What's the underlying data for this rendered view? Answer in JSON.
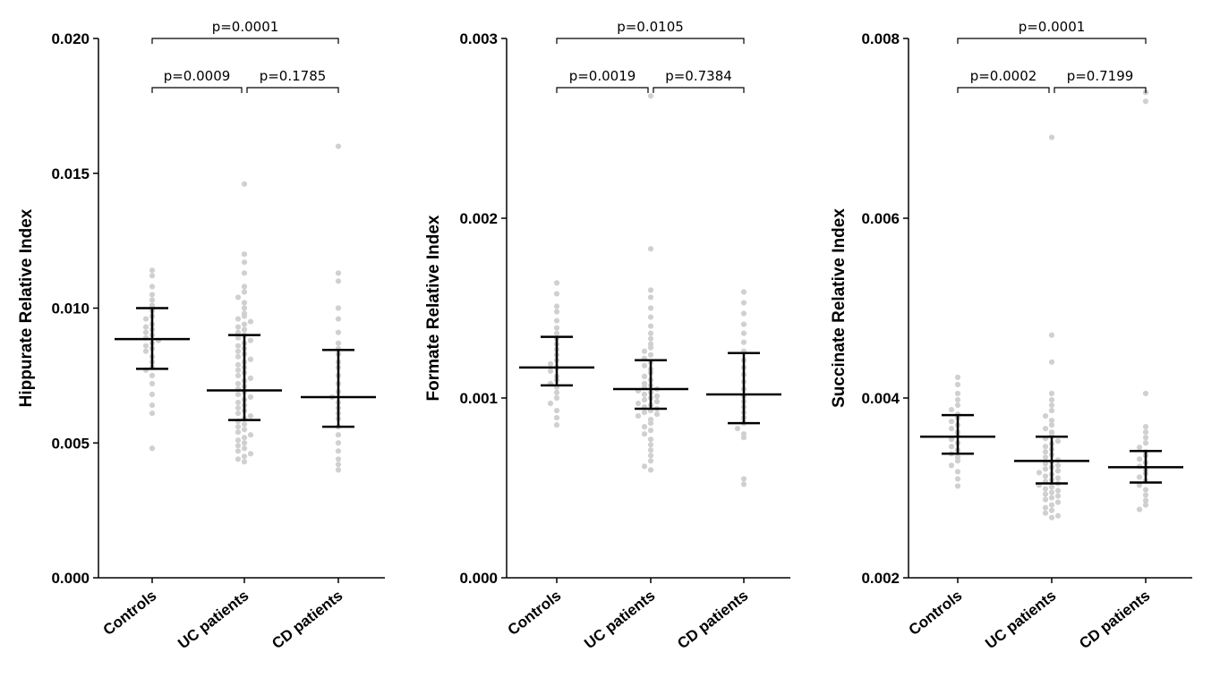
{
  "chart_data": [
    {
      "type": "scatter",
      "ylabel": "Hippurate Relative Index",
      "ylim": [
        0.0,
        0.02
      ],
      "yticks": [
        "0.000",
        "0.005",
        "0.010",
        "0.015",
        "0.020"
      ],
      "categories": [
        "Controls",
        "UC patients",
        "CD patients"
      ],
      "groups": [
        {
          "name": "Controls",
          "mean": 0.00885,
          "lower": 0.00775,
          "upper": 0.01,
          "points": [
            0.0114,
            0.0112,
            0.0108,
            0.0105,
            0.0103,
            0.0101,
            0.0099,
            0.0097,
            0.0096,
            0.0094,
            0.0093,
            0.0092,
            0.0091,
            0.009,
            0.0089,
            0.0088,
            0.0087,
            0.0086,
            0.0085,
            0.0084,
            0.0082,
            0.008,
            0.0078,
            0.0077,
            0.0075,
            0.0072,
            0.0068,
            0.0064,
            0.0061,
            0.0048
          ]
        },
        {
          "name": "UC patients",
          "mean": 0.00695,
          "lower": 0.00585,
          "upper": 0.009,
          "points": [
            0.0146,
            0.012,
            0.0117,
            0.0113,
            0.0108,
            0.0106,
            0.0104,
            0.0102,
            0.01,
            0.0098,
            0.0097,
            0.0096,
            0.0095,
            0.0094,
            0.0093,
            0.0092,
            0.0091,
            0.009,
            0.0089,
            0.0088,
            0.0087,
            0.0086,
            0.0085,
            0.0084,
            0.0083,
            0.0082,
            0.0081,
            0.008,
            0.0079,
            0.0078,
            0.0077,
            0.0076,
            0.0075,
            0.0074,
            0.0073,
            0.0072,
            0.0071,
            0.007,
            0.0069,
            0.0068,
            0.0067,
            0.0066,
            0.0065,
            0.0064,
            0.0063,
            0.0062,
            0.0061,
            0.006,
            0.0059,
            0.0058,
            0.0057,
            0.0056,
            0.0055,
            0.0054,
            0.0053,
            0.0052,
            0.0051,
            0.005,
            0.0049,
            0.0048,
            0.0047,
            0.0046,
            0.0045,
            0.0044,
            0.0043
          ]
        },
        {
          "name": "CD patients",
          "mean": 0.0067,
          "lower": 0.0056,
          "upper": 0.00845,
          "points": [
            0.016,
            0.0113,
            0.011,
            0.01,
            0.0096,
            0.0091,
            0.0087,
            0.0085,
            0.0083,
            0.008,
            0.0078,
            0.0075,
            0.0072,
            0.0069,
            0.0067,
            0.0065,
            0.0063,
            0.0061,
            0.0059,
            0.0056,
            0.0053,
            0.005,
            0.0047,
            0.0044,
            0.0042,
            0.004
          ]
        }
      ],
      "comparisons": [
        {
          "from": 0,
          "to": 2,
          "label": "p=0.0001",
          "level": 2
        },
        {
          "from": 0,
          "to": 1,
          "label": "p=0.0009",
          "level": 1
        },
        {
          "from": 1,
          "to": 2,
          "label": "p=0.1785",
          "level": 1
        }
      ]
    },
    {
      "type": "scatter",
      "ylabel": "Formate Relative Index",
      "ylim": [
        0.0,
        0.003
      ],
      "yticks": [
        "0.000",
        "0.001",
        "0.002",
        "0.003"
      ],
      "categories": [
        "Controls",
        "UC patients",
        "CD patients"
      ],
      "groups": [
        {
          "name": "Controls",
          "mean": 0.00117,
          "lower": 0.00107,
          "upper": 0.00134,
          "points": [
            0.00164,
            0.00158,
            0.00151,
            0.00148,
            0.00143,
            0.00139,
            0.00136,
            0.00133,
            0.0013,
            0.00127,
            0.00124,
            0.00121,
            0.00119,
            0.00117,
            0.00115,
            0.00112,
            0.0011,
            0.00108,
            0.00106,
            0.00103,
            0.001,
            0.00097,
            0.00093,
            0.00089,
            0.00085
          ]
        },
        {
          "name": "UC patients",
          "mean": 0.00105,
          "lower": 0.00094,
          "upper": 0.00121,
          "points": [
            0.00268,
            0.00183,
            0.0016,
            0.00156,
            0.0015,
            0.00145,
            0.0014,
            0.00136,
            0.00133,
            0.0013,
            0.00128,
            0.00126,
            0.00124,
            0.00122,
            0.0012,
            0.00118,
            0.00116,
            0.00114,
            0.00112,
            0.0011,
            0.00108,
            0.00107,
            0.00106,
            0.00105,
            0.00104,
            0.00103,
            0.00102,
            0.00101,
            0.001,
            0.00099,
            0.00098,
            0.00097,
            0.00096,
            0.00095,
            0.00094,
            0.00093,
            0.00092,
            0.00091,
            0.0009,
            0.00088,
            0.00086,
            0.00084,
            0.00082,
            0.0008,
            0.00077,
            0.00074,
            0.00071,
            0.00068,
            0.00065,
            0.00062,
            0.0006
          ]
        },
        {
          "name": "CD patients",
          "mean": 0.00102,
          "lower": 0.00086,
          "upper": 0.00125,
          "points": [
            0.00159,
            0.00153,
            0.00147,
            0.00141,
            0.00136,
            0.00131,
            0.00126,
            0.00121,
            0.00117,
            0.00113,
            0.00109,
            0.00105,
            0.00101,
            0.00098,
            0.00095,
            0.00092,
            0.00089,
            0.00086,
            0.00083,
            0.0008,
            0.00078,
            0.00055,
            0.00052
          ]
        }
      ],
      "comparisons": [
        {
          "from": 0,
          "to": 2,
          "label": "p=0.0105",
          "level": 2
        },
        {
          "from": 0,
          "to": 1,
          "label": "p=0.0019",
          "level": 1
        },
        {
          "from": 1,
          "to": 2,
          "label": "p=0.7384",
          "level": 1
        }
      ]
    },
    {
      "type": "scatter",
      "ylabel": "Succinate Relative Index",
      "ylim": [
        0.002,
        0.008
      ],
      "yticks": [
        "0.002",
        "0.004",
        "0.006",
        "0.008"
      ],
      "categories": [
        "Controls",
        "UC patients",
        "CD patients"
      ],
      "groups": [
        {
          "name": "Controls",
          "mean": 0.00357,
          "lower": 0.00338,
          "upper": 0.00381,
          "points": [
            0.00423,
            0.00415,
            0.00405,
            0.00398,
            0.00392,
            0.00387,
            0.00382,
            0.00378,
            0.00374,
            0.0037,
            0.00366,
            0.00362,
            0.00358,
            0.00354,
            0.0035,
            0.00346,
            0.00342,
            0.00338,
            0.00334,
            0.0033,
            0.00325,
            0.00318,
            0.0031,
            0.00302
          ]
        },
        {
          "name": "UC patients",
          "mean": 0.0033,
          "lower": 0.00305,
          "upper": 0.00357,
          "points": [
            0.0069,
            0.0047,
            0.0044,
            0.00405,
            0.00398,
            0.00392,
            0.00386,
            0.0038,
            0.00375,
            0.0037,
            0.00366,
            0.00362,
            0.00358,
            0.00355,
            0.00352,
            0.00349,
            0.00346,
            0.00343,
            0.0034,
            0.00337,
            0.00334,
            0.00331,
            0.00329,
            0.00327,
            0.00325,
            0.00323,
            0.00321,
            0.00319,
            0.00317,
            0.00315,
            0.00313,
            0.00311,
            0.00309,
            0.00307,
            0.00305,
            0.00303,
            0.00301,
            0.00299,
            0.00297,
            0.00295,
            0.00293,
            0.00291,
            0.00289,
            0.00287,
            0.00284,
            0.00281,
            0.00278,
            0.00275,
            0.00272,
            0.00269,
            0.00267
          ]
        },
        {
          "name": "CD patients",
          "mean": 0.00323,
          "lower": 0.00306,
          "upper": 0.00341,
          "points": [
            0.0074,
            0.0073,
            0.00405,
            0.00368,
            0.00362,
            0.00356,
            0.0035,
            0.00345,
            0.0034,
            0.00336,
            0.00332,
            0.00328,
            0.00324,
            0.0032,
            0.00316,
            0.00312,
            0.00308,
            0.00303,
            0.00298,
            0.00292,
            0.00286,
            0.00281,
            0.00276
          ]
        }
      ],
      "comparisons": [
        {
          "from": 0,
          "to": 2,
          "label": "p=0.0001",
          "level": 2
        },
        {
          "from": 0,
          "to": 1,
          "label": "p=0.0002",
          "level": 1
        },
        {
          "from": 1,
          "to": 2,
          "label": "p=0.7199",
          "level": 1
        }
      ]
    }
  ]
}
